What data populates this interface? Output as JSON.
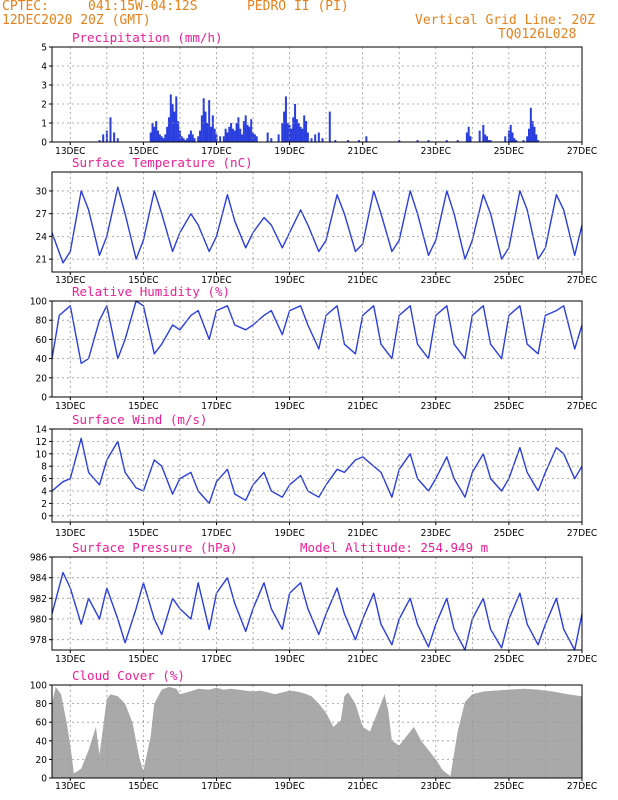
{
  "header": {
    "source": "CPTEC:",
    "coords": "041:15W-04:12S",
    "station": "PEDRO II (PI)",
    "init_time": "12DEC2020 20Z (GMT)",
    "grid_note": "Vertical Grid Line: 20Z",
    "model_code": "TQ0126L028"
  },
  "colors": {
    "header": "#e8801a",
    "title": "#ee1e96",
    "line": "#2a3ede",
    "cloud": "#a9a9a9"
  },
  "x_axis": {
    "ticks": [
      "13DEC",
      "15DEC",
      "17DEC",
      "19DEC",
      "21DEC",
      "23DEC",
      "25DEC",
      "27DEC"
    ],
    "start_day": 12.5,
    "end_day": 27
  },
  "chart_data": [
    {
      "id": "precip",
      "type": "bar",
      "title": "Precipitation (mm/h)",
      "ylim": [
        0,
        5
      ],
      "yticks": [
        0,
        1,
        2,
        3,
        4,
        5
      ],
      "x": [
        13.8,
        13.9,
        14.0,
        14.1,
        14.2,
        14.3,
        15.2,
        15.25,
        15.3,
        15.35,
        15.4,
        15.45,
        15.5,
        15.55,
        15.6,
        15.65,
        15.7,
        15.75,
        15.8,
        15.85,
        15.9,
        15.95,
        16.0,
        16.05,
        16.1,
        16.15,
        16.2,
        16.25,
        16.3,
        16.35,
        16.4,
        16.5,
        16.55,
        16.6,
        16.65,
        16.7,
        16.75,
        16.8,
        16.85,
        16.9,
        16.95,
        17.0,
        17.1,
        17.2,
        17.25,
        17.3,
        17.35,
        17.4,
        17.45,
        17.5,
        17.55,
        17.6,
        17.65,
        17.7,
        17.75,
        17.8,
        17.85,
        17.9,
        17.95,
        18.0,
        18.05,
        18.1,
        18.4,
        18.5,
        18.7,
        18.8,
        18.85,
        18.9,
        18.95,
        19.0,
        19.05,
        19.1,
        19.15,
        19.2,
        19.25,
        19.3,
        19.35,
        19.4,
        19.45,
        19.5,
        19.6,
        19.7,
        19.8,
        19.9,
        20.1,
        20.25,
        20.6,
        20.9,
        21.1,
        22.0,
        22.5,
        22.8,
        23.3,
        23.6,
        23.85,
        23.9,
        23.95,
        24.2,
        24.3,
        24.35,
        24.4,
        24.45,
        24.5,
        24.9,
        25.0,
        25.05,
        25.1,
        25.15,
        25.2,
        25.4,
        25.5,
        25.55,
        25.6,
        25.65,
        25.7,
        25.75,
        25.8
      ],
      "values": [
        0.1,
        0.4,
        0.6,
        1.3,
        0.5,
        0.2,
        0.5,
        1.0,
        0.8,
        1.1,
        0.6,
        0.4,
        0.3,
        0.2,
        0.4,
        0.8,
        1.3,
        2.5,
        2.0,
        1.6,
        2.4,
        1.1,
        0.6,
        0.3,
        0.2,
        0.1,
        0.2,
        0.4,
        0.6,
        0.4,
        0.2,
        0.3,
        0.6,
        1.4,
        2.3,
        1.6,
        1.0,
        2.2,
        0.8,
        1.4,
        0.7,
        0.4,
        0.3,
        0.3,
        0.7,
        0.5,
        0.8,
        1.0,
        0.7,
        0.6,
        1.0,
        1.3,
        0.7,
        0.4,
        1.1,
        1.4,
        0.9,
        0.8,
        1.2,
        0.5,
        0.4,
        0.3,
        0.5,
        0.2,
        0.4,
        1.0,
        1.6,
        2.4,
        1.0,
        0.9,
        0.7,
        1.3,
        2.0,
        1.2,
        1.0,
        0.8,
        0.7,
        1.4,
        1.1,
        0.5,
        0.2,
        0.4,
        0.5,
        0.2,
        1.6,
        0.1,
        0.1,
        0.1,
        0.3,
        0.1,
        0.1,
        0.1,
        0.1,
        0.1,
        0.5,
        0.8,
        0.3,
        0.6,
        0.9,
        0.4,
        0.3,
        0.1,
        0.1,
        0.3,
        0.6,
        0.9,
        0.5,
        0.2,
        0.1,
        0.1,
        0.3,
        0.7,
        1.8,
        1.1,
        0.8,
        0.4,
        0.1
      ]
    },
    {
      "id": "temp",
      "type": "line",
      "title": "Surface Temperature (nC)",
      "ylim": [
        19.3,
        32.5
      ],
      "yticks": [
        21,
        24,
        27,
        30
      ],
      "x": [
        12.5,
        12.8,
        13.0,
        13.3,
        13.5,
        13.8,
        14.0,
        14.3,
        14.5,
        14.8,
        15.0,
        15.3,
        15.5,
        15.8,
        16.0,
        16.3,
        16.5,
        16.8,
        17.0,
        17.3,
        17.5,
        17.8,
        18.0,
        18.3,
        18.5,
        18.8,
        19.0,
        19.3,
        19.5,
        19.8,
        20.0,
        20.3,
        20.5,
        20.8,
        21.0,
        21.3,
        21.5,
        21.8,
        22.0,
        22.3,
        22.5,
        22.8,
        23.0,
        23.3,
        23.5,
        23.8,
        24.0,
        24.3,
        24.5,
        24.8,
        25.0,
        25.3,
        25.5,
        25.8,
        26.0,
        26.3,
        26.5,
        26.8,
        27.0
      ],
      "values": [
        24.5,
        20.5,
        22.0,
        30.0,
        27.5,
        21.5,
        24.0,
        30.5,
        27.0,
        21.0,
        23.5,
        30.0,
        27.0,
        22.0,
        24.5,
        27.0,
        25.5,
        22.0,
        24.0,
        29.5,
        26.0,
        22.5,
        24.5,
        26.5,
        25.5,
        22.5,
        24.5,
        27.5,
        25.5,
        22.0,
        23.5,
        29.5,
        27.0,
        22.0,
        23.0,
        30.0,
        27.0,
        22.0,
        23.5,
        30.0,
        27.0,
        21.5,
        23.5,
        30.0,
        27.0,
        21.0,
        23.5,
        29.5,
        27.0,
        21.0,
        22.5,
        30.0,
        27.5,
        21.0,
        22.5,
        29.5,
        27.5,
        21.5,
        25.5
      ]
    },
    {
      "id": "rh",
      "type": "line",
      "title": "Relative Humidity (%)",
      "ylim": [
        0,
        100
      ],
      "yticks": [
        0,
        20,
        40,
        60,
        80,
        100
      ],
      "x": [
        12.5,
        12.7,
        13.0,
        13.3,
        13.5,
        13.8,
        14.0,
        14.3,
        14.5,
        14.8,
        15.0,
        15.3,
        15.5,
        15.8,
        16.0,
        16.3,
        16.5,
        16.8,
        17.0,
        17.3,
        17.5,
        17.8,
        18.0,
        18.3,
        18.5,
        18.8,
        19.0,
        19.3,
        19.5,
        19.8,
        20.0,
        20.3,
        20.5,
        20.8,
        21.0,
        21.3,
        21.5,
        21.8,
        22.0,
        22.3,
        22.5,
        22.8,
        23.0,
        23.3,
        23.5,
        23.8,
        24.0,
        24.3,
        24.5,
        24.8,
        25.0,
        25.3,
        25.5,
        25.8,
        26.0,
        26.3,
        26.5,
        26.8,
        27.0
      ],
      "values": [
        40,
        85,
        95,
        35,
        40,
        80,
        95,
        40,
        60,
        100,
        95,
        45,
        55,
        75,
        70,
        85,
        90,
        60,
        90,
        95,
        75,
        70,
        75,
        85,
        90,
        65,
        90,
        95,
        75,
        50,
        85,
        95,
        55,
        45,
        85,
        95,
        55,
        40,
        85,
        95,
        55,
        40,
        85,
        95,
        55,
        40,
        85,
        95,
        55,
        40,
        85,
        95,
        55,
        45,
        85,
        90,
        95,
        50,
        75
      ]
    },
    {
      "id": "wind",
      "type": "line",
      "title": "Surface Wind (m/s)",
      "ylim": [
        -1,
        14
      ],
      "yticks": [
        0,
        2,
        4,
        6,
        8,
        10,
        12,
        14
      ],
      "x": [
        12.5,
        12.8,
        13.0,
        13.3,
        13.5,
        13.8,
        14.0,
        14.3,
        14.5,
        14.8,
        15.0,
        15.3,
        15.5,
        15.8,
        16.0,
        16.3,
        16.5,
        16.8,
        17.0,
        17.3,
        17.5,
        17.8,
        18.0,
        18.3,
        18.5,
        18.8,
        19.0,
        19.3,
        19.5,
        19.8,
        20.0,
        20.3,
        20.5,
        20.8,
        21.0,
        21.3,
        21.5,
        21.8,
        22.0,
        22.3,
        22.5,
        22.8,
        23.0,
        23.3,
        23.5,
        23.8,
        24.0,
        24.3,
        24.5,
        24.8,
        25.0,
        25.3,
        25.5,
        25.8,
        26.0,
        26.3,
        26.5,
        26.8,
        27.0
      ],
      "values": [
        4,
        5.5,
        6,
        12.5,
        7,
        5,
        9,
        12,
        7,
        4.5,
        4,
        9,
        8,
        3.5,
        6,
        7,
        4,
        2,
        5.5,
        7.5,
        3.5,
        2.5,
        5,
        7,
        4,
        3,
        5,
        6.5,
        4,
        3,
        5,
        7.5,
        7,
        9,
        9.5,
        8,
        7,
        3,
        7.5,
        10,
        6,
        4,
        6,
        9.5,
        6,
        3,
        7,
        10,
        6,
        4,
        6,
        11,
        7,
        4,
        7,
        11,
        10,
        6,
        8
      ]
    },
    {
      "id": "pres",
      "type": "line",
      "title": "Surface Pressure (hPa)",
      "subtitle": "Model Altitude: 254.949 m",
      "ylim": [
        977,
        986
      ],
      "yticks": [
        978,
        980,
        982,
        984,
        986
      ],
      "x": [
        12.5,
        12.8,
        13.0,
        13.3,
        13.5,
        13.8,
        14.0,
        14.3,
        14.5,
        14.8,
        15.0,
        15.3,
        15.5,
        15.8,
        16.0,
        16.3,
        16.5,
        16.8,
        17.0,
        17.3,
        17.5,
        17.8,
        18.0,
        18.3,
        18.5,
        18.8,
        19.0,
        19.3,
        19.5,
        19.8,
        20.0,
        20.3,
        20.5,
        20.8,
        21.0,
        21.3,
        21.5,
        21.8,
        22.0,
        22.3,
        22.5,
        22.8,
        23.0,
        23.3,
        23.5,
        23.8,
        24.0,
        24.3,
        24.5,
        24.8,
        25.0,
        25.3,
        25.5,
        25.8,
        26.0,
        26.3,
        26.5,
        26.8,
        27.0
      ],
      "values": [
        980.5,
        984.5,
        983,
        979.5,
        982,
        980,
        983,
        980,
        977.7,
        981,
        983.5,
        980,
        978.5,
        982,
        981,
        980,
        983.5,
        979,
        982.5,
        984,
        981.5,
        978.8,
        981,
        983.5,
        981,
        979,
        982.5,
        983.5,
        981,
        978.5,
        980.5,
        983,
        980.5,
        978,
        980,
        982.5,
        979.5,
        977.5,
        980,
        982,
        979.5,
        977.3,
        979.5,
        982,
        979,
        977,
        980,
        982,
        979,
        977.2,
        980,
        982.5,
        979.5,
        977.5,
        979.5,
        982,
        979,
        977,
        980.5
      ]
    },
    {
      "id": "cloud",
      "type": "area",
      "title": "Cloud Cover (%)",
      "ylim": [
        0,
        100
      ],
      "yticks": [
        0,
        20,
        40,
        60,
        80,
        100
      ],
      "x": [
        12.5,
        12.6,
        12.75,
        12.9,
        13.0,
        13.1,
        13.3,
        13.5,
        13.7,
        13.8,
        14.0,
        14.1,
        14.3,
        14.5,
        14.7,
        14.9,
        15.0,
        15.2,
        15.3,
        15.5,
        15.7,
        15.9,
        16.0,
        16.2,
        16.5,
        16.8,
        17.0,
        17.2,
        17.4,
        17.6,
        17.8,
        18.0,
        18.2,
        18.4,
        18.6,
        18.8,
        19.0,
        19.2,
        19.4,
        19.6,
        19.8,
        20.0,
        20.2,
        20.4,
        20.5,
        20.6,
        20.8,
        21.0,
        21.2,
        21.4,
        21.6,
        21.7,
        21.8,
        22.0,
        22.2,
        22.4,
        22.6,
        22.8,
        23.0,
        23.2,
        23.4,
        23.6,
        23.8,
        24.0,
        24.3,
        24.6,
        25.0,
        25.4,
        25.8,
        26.2,
        26.6,
        27.0
      ],
      "values": [
        80,
        98,
        90,
        60,
        35,
        5,
        10,
        30,
        55,
        25,
        85,
        90,
        88,
        80,
        60,
        20,
        8,
        45,
        80,
        95,
        98,
        96,
        90,
        92,
        96,
        95,
        97,
        95,
        96,
        95,
        94,
        93,
        94,
        92,
        90,
        92,
        94,
        93,
        91,
        88,
        80,
        70,
        55,
        62,
        88,
        92,
        80,
        55,
        50,
        70,
        90,
        72,
        40,
        35,
        45,
        55,
        40,
        30,
        20,
        8,
        2,
        50,
        82,
        90,
        93,
        94,
        95,
        96,
        95,
        93,
        90,
        88
      ]
    }
  ]
}
